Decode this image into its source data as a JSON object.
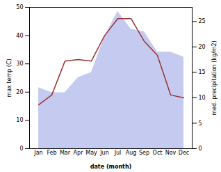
{
  "chart_data": {
    "type": "line",
    "categories": [
      "Jan",
      "Feb",
      "Mar",
      "Apr",
      "May",
      "Jun",
      "Jul",
      "Aug",
      "Sep",
      "Oct",
      "Nov",
      "Dec"
    ],
    "series": [
      {
        "type": "area",
        "axis": "y2",
        "color": "#c5cbf0",
        "values": [
          12.0,
          11.0,
          11.0,
          14.0,
          15.0,
          22.0,
          27.0,
          23.5,
          23.0,
          19.0,
          19.0,
          18.0
        ]
      },
      {
        "type": "line",
        "color": "#993333",
        "values": [
          15.5,
          19.0,
          31.0,
          31.5,
          31.0,
          40.0,
          46.0,
          46.0,
          38.0,
          33.0,
          19.0,
          18.0
        ]
      }
    ],
    "xlabel": "date (month)",
    "ylabel": "max temp (C)",
    "y2label": "med. precipitation (kg/m2)",
    "ylim": [
      0,
      50
    ],
    "yticks": [
      0,
      10,
      20,
      30,
      40,
      50
    ],
    "y2lim": [
      0,
      27.78
    ],
    "y2ticks": [
      0,
      5,
      10,
      15,
      20,
      25
    ],
    "grid": false
  }
}
